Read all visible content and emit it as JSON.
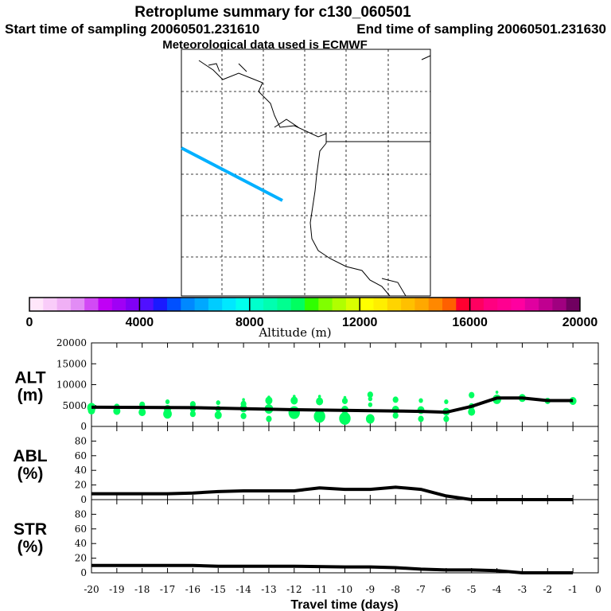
{
  "header": {
    "title": "Retroplume summary for c130_060501",
    "start": "Start time of sampling 20060501.231610",
    "end": "End time of sampling 20060501.231630",
    "met": "Meteorological data used is ECMWF"
  },
  "colorbar": {
    "label": "Altitude (m)",
    "ticks": [
      "0",
      "4000",
      "8000",
      "12000",
      "16000",
      "20000"
    ],
    "colors": [
      "#ffe6fa",
      "#f9ccf9",
      "#f0b0f5",
      "#e28cf5",
      "#d24af5",
      "#c000f5",
      "#a000f5",
      "#8000f5",
      "#5010ff",
      "#1a1aff",
      "#0050ff",
      "#0088ff",
      "#00a8ff",
      "#00ccff",
      "#00e8ff",
      "#00ffee",
      "#00ffcc",
      "#00ffb0",
      "#00ff90",
      "#00ff60",
      "#30ff00",
      "#80ff00",
      "#b0ff00",
      "#d8ff00",
      "#ffff00",
      "#ffee00",
      "#ffd400",
      "#ffc000",
      "#ffa800",
      "#ff8800",
      "#ff6000",
      "#ff0030",
      "#ff0060",
      "#ff0080",
      "#ff0090",
      "#ff00a0",
      "#e000a0",
      "#c00090",
      "#a00080",
      "#700060"
    ]
  },
  "map": {
    "track_color": "#00b0ff"
  },
  "chart_data": [
    {
      "type": "scatter",
      "panel": "ALT",
      "ylabel": [
        "ALT",
        "(m)"
      ],
      "ylim": [
        0,
        20000
      ],
      "yticks": [
        "0",
        "5000",
        "10000",
        "15000",
        "20000"
      ],
      "line": {
        "x": [
          -20,
          -16,
          -12,
          -8,
          -7,
          -6,
          -5,
          -4,
          -3,
          -2,
          -1
        ],
        "y": [
          4600,
          4500,
          4000,
          3700,
          3600,
          3400,
          4800,
          6800,
          6800,
          6200,
          6200
        ]
      },
      "dot_color": "#00ff60",
      "dots": [
        [
          -20,
          4500,
          6
        ],
        [
          -20,
          3800,
          5
        ],
        [
          -19,
          4700,
          4
        ],
        [
          -19,
          3700,
          5
        ],
        [
          -18,
          5200,
          4
        ],
        [
          -18,
          3400,
          5
        ],
        [
          -17,
          5900,
          3
        ],
        [
          -17,
          4200,
          5
        ],
        [
          -17,
          3000,
          6
        ],
        [
          -16,
          5300,
          4
        ],
        [
          -16,
          4200,
          4
        ],
        [
          -16,
          3000,
          4
        ],
        [
          -15,
          5700,
          3
        ],
        [
          -15,
          4200,
          4
        ],
        [
          -15,
          2700,
          5
        ],
        [
          -14,
          6400,
          2
        ],
        [
          -14,
          5400,
          4
        ],
        [
          -14,
          4300,
          5
        ],
        [
          -14,
          2500,
          4
        ],
        [
          -13,
          7000,
          2
        ],
        [
          -13,
          6200,
          5
        ],
        [
          -13,
          4200,
          6
        ],
        [
          -13,
          1800,
          4
        ],
        [
          -12,
          7200,
          2
        ],
        [
          -12,
          6200,
          5
        ],
        [
          -12,
          3300,
          8
        ],
        [
          -11,
          7200,
          2
        ],
        [
          -11,
          6000,
          5
        ],
        [
          -11,
          2400,
          8
        ],
        [
          -10,
          6900,
          2
        ],
        [
          -10,
          6100,
          4
        ],
        [
          -10,
          4000,
          5
        ],
        [
          -10,
          1900,
          8
        ],
        [
          -9,
          7600,
          4
        ],
        [
          -9,
          6600,
          3
        ],
        [
          -9,
          5200,
          3
        ],
        [
          -9,
          1800,
          6
        ],
        [
          -8,
          6400,
          4
        ],
        [
          -8,
          4000,
          5
        ],
        [
          -8,
          2600,
          4
        ],
        [
          -7,
          6200,
          3
        ],
        [
          -7,
          3900,
          5
        ],
        [
          -7,
          1800,
          4
        ],
        [
          -6,
          5900,
          3
        ],
        [
          -6,
          3500,
          5
        ],
        [
          -6,
          1800,
          4
        ],
        [
          -5,
          7500,
          4
        ],
        [
          -5,
          4800,
          4
        ],
        [
          -5,
          3500,
          5
        ],
        [
          -4,
          8200,
          2
        ],
        [
          -4,
          6500,
          6
        ],
        [
          -3,
          6800,
          5
        ],
        [
          -2,
          6100,
          4
        ],
        [
          -1,
          6100,
          5
        ]
      ]
    },
    {
      "type": "line",
      "panel": "ABL",
      "ylabel": [
        "ABL",
        "(%)"
      ],
      "ylim": [
        0,
        100
      ],
      "yticks": [
        "0",
        "20",
        "40",
        "60",
        "80"
      ],
      "x": [
        -20,
        -17,
        -16,
        -15,
        -14,
        -13,
        -12,
        -11,
        -10,
        -9,
        -8,
        -7,
        -6,
        -5,
        -4,
        -3,
        -2,
        -1
      ],
      "y": [
        8,
        8,
        9,
        11,
        12,
        12,
        12,
        16,
        14,
        14,
        17,
        14,
        5,
        0,
        0,
        0,
        0,
        0
      ]
    },
    {
      "type": "line",
      "panel": "STR",
      "ylabel": [
        "STR",
        "(%)"
      ],
      "ylim": [
        0,
        100
      ],
      "yticks": [
        "0",
        "20",
        "40",
        "60",
        "80"
      ],
      "x": [
        -20,
        -16,
        -15,
        -12,
        -10,
        -9,
        -8,
        -7,
        -6,
        -5,
        -4,
        -3,
        -2,
        -1
      ],
      "y": [
        10,
        10,
        9,
        9,
        8,
        8,
        7,
        5,
        4,
        4,
        3,
        0,
        0,
        0
      ],
      "xlabel": "Travel time (days)",
      "xticks": [
        "-20",
        "-19",
        "-18",
        "-17",
        "-16",
        "-15",
        "-14",
        "-13",
        "-12",
        "-11",
        "-10",
        "-9",
        "-8",
        "-7",
        "-6",
        "-5",
        "-4",
        "-3",
        "-2",
        "-1",
        "0"
      ],
      "xlim": [
        -20,
        0
      ]
    }
  ]
}
